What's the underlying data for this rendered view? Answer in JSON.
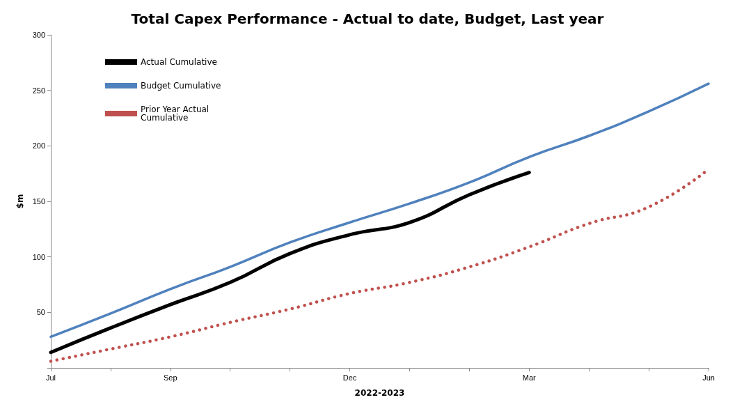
{
  "chart_data": {
    "type": "line",
    "title": "Total Capex Performance - Actual to date, Budget, Last year",
    "xlabel": "2022-2023",
    "ylabel": "$m",
    "categories": [
      "Jul",
      null,
      "Sep",
      null,
      null,
      "Dec",
      null,
      null,
      "Mar",
      null,
      null,
      "Jun"
    ],
    "ylim": [
      0,
      300
    ],
    "yticks": [
      {
        "value": 0,
        "label": null
      },
      50,
      100,
      150,
      200,
      250,
      300
    ],
    "grid": false,
    "legend": "top left",
    "marker": "none",
    "series": [
      {
        "name": "Actual Cumulative",
        "color": "#000000",
        "line_style": "solid",
        "values": [
          14,
          36,
          57,
          77,
          103,
          120,
          131,
          156,
          176,
          null,
          null,
          null
        ]
      },
      {
        "name": "Budget Cumulative",
        "color": "#4f81bd",
        "line_style": "solid",
        "values": [
          28,
          49,
          71,
          91,
          113,
          131,
          148,
          167,
          190,
          209,
          231,
          256
        ]
      },
      {
        "name": "Prior Year Actual Cumulative",
        "color": "#c0504d",
        "line_style": "dotted",
        "values": [
          6,
          17,
          28,
          41,
          53,
          67,
          77,
          91,
          109,
          130,
          145,
          179
        ]
      }
    ]
  }
}
